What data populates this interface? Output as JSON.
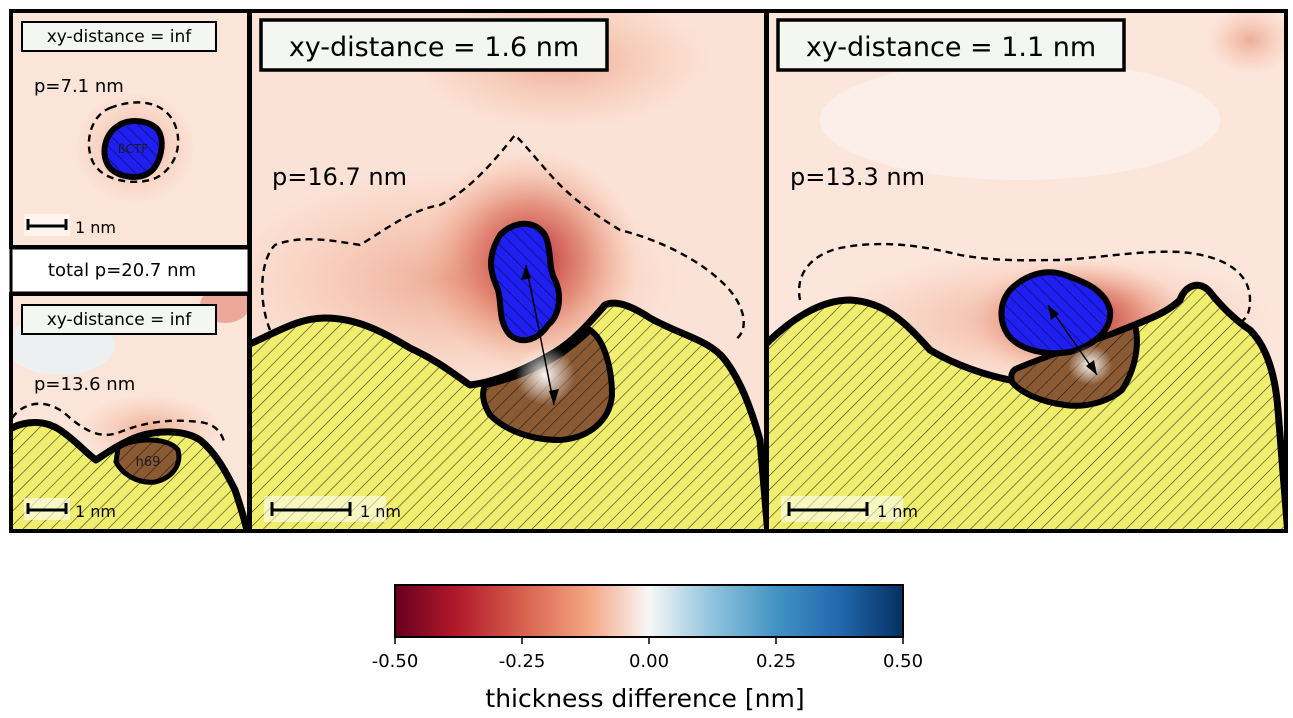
{
  "figure": {
    "small_top": {
      "title": "xy-distance = inf",
      "p_label": "p=7.1 nm",
      "molecule_label": "ßCTF",
      "scale_label": "1 nm"
    },
    "total": {
      "label": "total p=20.7 nm"
    },
    "small_bottom": {
      "title": "xy-distance = inf",
      "p_label": "p=13.6 nm",
      "molecule_label": "h69",
      "scale_label": "1 nm"
    },
    "panel_middle": {
      "title": "xy-distance = 1.6 nm",
      "p_label": "p=16.7 nm",
      "scale_label": "1 nm"
    },
    "panel_right": {
      "title": "xy-distance = 1.1 nm",
      "p_label": "p=13.3 nm",
      "scale_label": "1 nm"
    }
  },
  "colorbar": {
    "label": "thickness difference [nm]",
    "min": -0.5,
    "max": 0.5,
    "ticks": [
      "-0.50",
      "-0.25",
      "0.00",
      "0.25",
      "0.50"
    ],
    "colors": {
      "negative_end": "#67001f",
      "neg_mid": "#d6604d",
      "neg_light": "#f4a582",
      "center": "#f7f7f7",
      "pos_light": "#92c5de",
      "pos_mid": "#4393c3",
      "positive_end": "#053061"
    }
  },
  "colors": {
    "surface_fill": "#f0ee6e",
    "pocket_fill": "#8a5a35",
    "molecule_fill": "#1f1ff2",
    "background_tint": "#fbe2d6"
  }
}
